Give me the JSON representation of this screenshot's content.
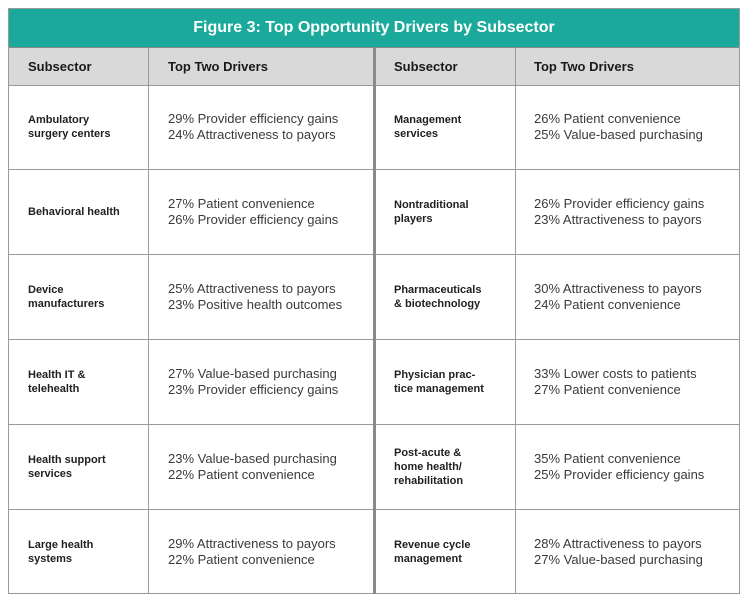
{
  "title": "Figure 3: Top Opportunity Drivers by Subsector",
  "headers": {
    "subsector": "Subsector",
    "drivers": "Top Two Drivers"
  },
  "left_rows": [
    {
      "subsector": "Ambulatory\nsurgery centers",
      "driver1": "29% Provider efficiency gains",
      "driver2": "24% Attractiveness to payors"
    },
    {
      "subsector": "Behavioral health",
      "driver1": "27% Patient convenience",
      "driver2": "26% Provider efficiency gains"
    },
    {
      "subsector": "Device\nmanufacturers",
      "driver1": "25% Attractiveness to payors",
      "driver2": "23% Positive health outcomes"
    },
    {
      "subsector": "Health IT &\ntelehealth",
      "driver1": "27% Value-based purchasing",
      "driver2": "23% Provider efficiency gains"
    },
    {
      "subsector": "Health support\nservices",
      "driver1": "23% Value-based purchasing",
      "driver2": "22% Patient convenience"
    },
    {
      "subsector": "Large health\nsystems",
      "driver1": "29% Attractiveness to payors",
      "driver2": "22% Patient convenience"
    }
  ],
  "right_rows": [
    {
      "subsector": "Management\nservices",
      "driver1": "26% Patient convenience",
      "driver2": "25% Value-based purchasing"
    },
    {
      "subsector": "Nontraditional\nplayers",
      "driver1": "26% Provider efficiency gains",
      "driver2": "23% Attractiveness to payors"
    },
    {
      "subsector": "Pharmaceuticals\n& biotechnology",
      "driver1": "30% Attractiveness to payors",
      "driver2": "24% Patient convenience"
    },
    {
      "subsector": "Physician prac-\ntice management",
      "driver1": "33% Lower costs to patients",
      "driver2": "27% Patient convenience"
    },
    {
      "subsector": "Post-acute &\nhome health/\nrehabilitation",
      "driver1": "35% Patient convenience",
      "driver2": "25% Provider efficiency gains"
    },
    {
      "subsector": "Revenue cycle\nmanagement",
      "driver1": "28% Attractiveness to payors",
      "driver2": "27% Value-based purchasing"
    }
  ],
  "colors": {
    "title_bg": "#1aa99a",
    "header_bg": "#d9d9d9",
    "border": "#9a9a9a"
  }
}
